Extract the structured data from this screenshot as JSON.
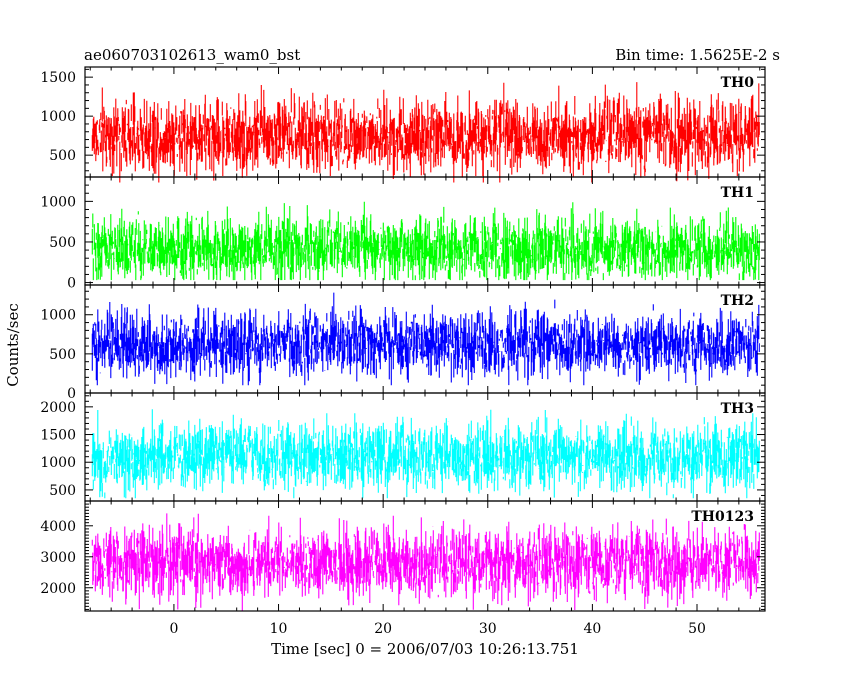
{
  "header": {
    "left": "ae060703102613_wam0_bst",
    "right": "Bin time: 1.5625E-2 s"
  },
  "chart_data": {
    "type": "line",
    "title": "ae060703102613_wam0_bst",
    "xlabel": "Time [sec] 0 = 2006/07/03 10:26:13.751",
    "ylabel": "Counts/sec",
    "xlim": [
      -8.5,
      56.5
    ],
    "xticks": [
      0,
      10,
      20,
      30,
      40,
      50
    ],
    "bin_time_s": 0.015625,
    "grid": false,
    "panels": [
      {
        "name": "TH0",
        "color": "#ff0000",
        "ylim": [
          220,
          1630
        ],
        "yticks": [
          500,
          1000,
          1500
        ],
        "x_range": [
          -7.8,
          56.0
        ],
        "mean": 750,
        "min": 150,
        "max": 1600
      },
      {
        "name": "TH1",
        "color": "#00ff00",
        "ylim": [
          -30,
          1300
        ],
        "yticks": [
          0,
          500,
          1000
        ],
        "x_range": [
          -7.8,
          56.0
        ],
        "mean": 420,
        "min": 30,
        "max": 1250
      },
      {
        "name": "TH2",
        "color": "#0000ff",
        "ylim": [
          0,
          1380
        ],
        "yticks": [
          0,
          500,
          1000
        ],
        "x_range": [
          -7.8,
          56.0
        ],
        "mean": 620,
        "min": 100,
        "max": 1360
      },
      {
        "name": "TH3",
        "color": "#00ffff",
        "ylim": [
          300,
          2250
        ],
        "yticks": [
          500,
          1000,
          1500,
          2000
        ],
        "x_range": [
          -7.8,
          56.0
        ],
        "mean": 1100,
        "min": 350,
        "max": 2200
      },
      {
        "name": "TH0123",
        "color": "#ff00ff",
        "ylim": [
          1250,
          4800
        ],
        "yticks": [
          2000,
          3000,
          4000
        ],
        "x_range": [
          -7.8,
          56.0
        ],
        "mean": 2800,
        "min": 1250,
        "max": 4700
      }
    ]
  }
}
